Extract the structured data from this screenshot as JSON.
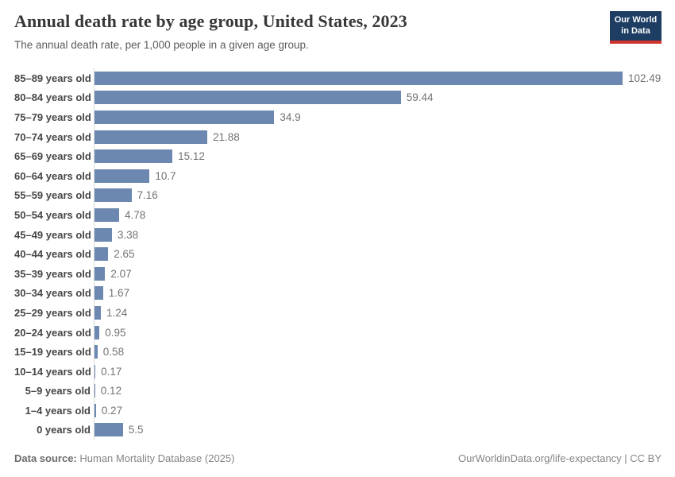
{
  "header": {
    "title": "Annual death rate by age group, United States, 2023",
    "subtitle": "The annual death rate, per 1,000 people in a given age group.",
    "logo": {
      "line1": "Our World",
      "line2": "in Data",
      "bg_color": "#1d3d63",
      "accent_color": "#d0342c"
    }
  },
  "chart_data": {
    "type": "bar",
    "orientation": "horizontal",
    "title": "Annual death rate by age group, United States, 2023",
    "subtitle": "The annual death rate, per 1,000 people in a given age group.",
    "categories": [
      "85–89 years old",
      "80–84 years old",
      "75–79 years old",
      "70–74 years old",
      "65–69 years old",
      "60–64 years old",
      "55–59 years old",
      "50–54 years old",
      "45–49 years old",
      "40–44 years old",
      "35–39 years old",
      "30–34 years old",
      "25–29 years old",
      "20–24 years old",
      "15–19 years old",
      "10–14 years old",
      "5–9 years old",
      "1–4 years old",
      "0 years old"
    ],
    "values": [
      102.49,
      59.44,
      34.9,
      21.88,
      15.12,
      10.7,
      7.16,
      4.78,
      3.38,
      2.65,
      2.07,
      1.67,
      1.24,
      0.95,
      0.58,
      0.17,
      0.12,
      0.27,
      5.5
    ],
    "value_labels": [
      "102.49",
      "59.44",
      "34.9",
      "21.88",
      "15.12",
      "10.7",
      "7.16",
      "4.78",
      "3.38",
      "2.65",
      "2.07",
      "1.67",
      "1.24",
      "0.95",
      "0.58",
      "0.17",
      "0.12",
      "0.27",
      "5.5"
    ],
    "xlabel": "",
    "ylabel": "",
    "xlim": [
      0,
      102.49
    ],
    "grid": false,
    "legend": false,
    "bar_color": "#6c87b0",
    "axis_line_color": "#dadada"
  },
  "footer": {
    "datasource_label": "Data source:",
    "datasource_value": "Human Mortality Database (2025)",
    "link": "OurWorldinData.org/life-expectancy | CC BY"
  }
}
